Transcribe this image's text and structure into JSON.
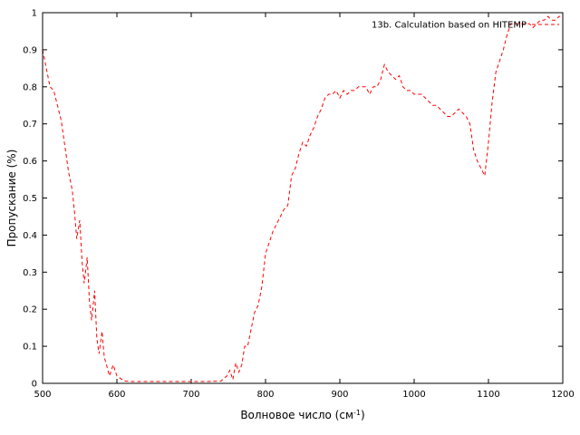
{
  "chart_data": {
    "type": "line",
    "xlabel": "Волновое число (см",
    "xlabel_sup": "-1",
    "xlabel_close": ")",
    "ylabel": "Пропускание (%)",
    "xlim": [
      500,
      1200
    ],
    "ylim": [
      0,
      1
    ],
    "xticks": [
      500,
      600,
      700,
      800,
      900,
      1000,
      1100,
      1200
    ],
    "yticks": [
      0,
      0.1,
      0.2,
      0.3,
      0.4,
      0.5,
      0.6,
      0.7,
      0.8,
      0.9,
      1
    ],
    "grid": false,
    "legend_position": "top-right",
    "series": [
      {
        "name": "13b. Calculation based on HITEMP",
        "color": "#ff0000",
        "dash": "dashed",
        "x": [
          500,
          505,
          510,
          515,
          520,
          525,
          530,
          535,
          540,
          543,
          546,
          550,
          553,
          556,
          560,
          563,
          566,
          570,
          573,
          576,
          580,
          583,
          586,
          590,
          595,
          600,
          610,
          620,
          640,
          660,
          680,
          700,
          720,
          740,
          748,
          752,
          756,
          760,
          764,
          768,
          772,
          776,
          780,
          785,
          790,
          795,
          800,
          805,
          810,
          815,
          820,
          825,
          830,
          835,
          840,
          845,
          850,
          855,
          860,
          865,
          870,
          875,
          880,
          885,
          890,
          895,
          900,
          905,
          910,
          915,
          920,
          925,
          930,
          935,
          940,
          945,
          950,
          955,
          960,
          965,
          970,
          975,
          980,
          985,
          990,
          995,
          1000,
          1005,
          1010,
          1015,
          1020,
          1025,
          1030,
          1035,
          1040,
          1045,
          1050,
          1055,
          1060,
          1065,
          1070,
          1075,
          1080,
          1085,
          1090,
          1095,
          1100,
          1105,
          1110,
          1115,
          1120,
          1125,
          1130,
          1135,
          1140,
          1145,
          1150,
          1155,
          1160,
          1165,
          1170,
          1175,
          1180,
          1185,
          1190,
          1195,
          1200
        ],
        "y": [
          0.9,
          0.85,
          0.8,
          0.79,
          0.75,
          0.71,
          0.64,
          0.57,
          0.52,
          0.46,
          0.39,
          0.44,
          0.33,
          0.27,
          0.34,
          0.22,
          0.17,
          0.25,
          0.12,
          0.08,
          0.14,
          0.07,
          0.05,
          0.02,
          0.05,
          0.02,
          0.006,
          0.005,
          0.005,
          0.005,
          0.005,
          0.005,
          0.005,
          0.006,
          0.02,
          0.035,
          0.01,
          0.055,
          0.03,
          0.05,
          0.1,
          0.1,
          0.14,
          0.19,
          0.21,
          0.26,
          0.35,
          0.38,
          0.41,
          0.43,
          0.45,
          0.47,
          0.48,
          0.56,
          0.58,
          0.62,
          0.65,
          0.64,
          0.67,
          0.69,
          0.72,
          0.74,
          0.77,
          0.78,
          0.78,
          0.79,
          0.77,
          0.79,
          0.78,
          0.79,
          0.79,
          0.8,
          0.8,
          0.8,
          0.78,
          0.8,
          0.8,
          0.82,
          0.86,
          0.84,
          0.83,
          0.82,
          0.83,
          0.8,
          0.79,
          0.79,
          0.78,
          0.78,
          0.78,
          0.77,
          0.76,
          0.75,
          0.75,
          0.74,
          0.73,
          0.72,
          0.72,
          0.73,
          0.74,
          0.73,
          0.72,
          0.7,
          0.63,
          0.6,
          0.58,
          0.56,
          0.65,
          0.76,
          0.84,
          0.87,
          0.9,
          0.94,
          0.97,
          0.97,
          0.97,
          0.97,
          0.97,
          0.97,
          0.96,
          0.97,
          0.98,
          0.98,
          0.99,
          0.98,
          0.98,
          0.99,
          0.99
        ]
      }
    ]
  }
}
